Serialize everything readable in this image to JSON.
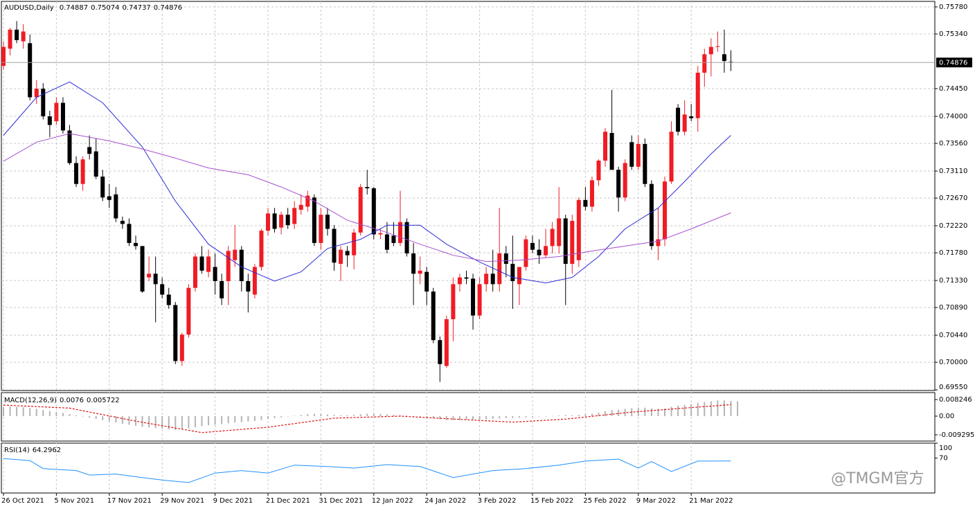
{
  "chart_data": [
    {
      "type": "candlestick",
      "title": "AUDUSD,Daily",
      "categories": [
        "26 Oct 2021",
        null,
        null,
        null,
        null,
        null,
        null,
        null,
        "5 Nov 2021",
        null,
        null,
        null,
        null,
        null,
        null,
        null,
        "17 Nov 2021",
        null,
        null,
        null,
        null,
        null,
        null,
        null,
        "29 Nov 2021",
        null,
        null,
        null,
        null,
        null,
        null,
        null,
        "9 Dec 2021",
        null,
        null,
        null,
        null,
        null,
        null,
        null,
        "21 Dec 2021",
        null,
        null,
        null,
        null,
        null,
        null,
        null,
        "31 Dec 2021",
        null,
        null,
        null,
        null,
        null,
        null,
        null,
        "12 Jan 2022",
        null,
        null,
        null,
        null,
        null,
        null,
        null,
        "24 Jan 2022",
        null,
        null,
        null,
        null,
        null,
        null,
        null,
        "3 Feb 2022",
        null,
        null,
        null,
        null,
        null,
        null,
        null,
        "15 Feb 2022",
        null,
        null,
        null,
        null,
        null,
        null,
        null,
        "25 Feb 2022",
        null,
        null,
        null,
        null,
        null,
        null,
        null,
        "9 Mar 2022",
        null,
        null,
        null,
        null,
        null,
        null,
        null,
        "21 Mar 2022",
        null,
        null,
        null,
        null,
        null,
        null
      ],
      "open": [
        0.7482,
        0.751,
        0.7541,
        0.7522,
        0.7519,
        0.7431,
        0.7445,
        0.74,
        0.7392,
        0.7422,
        0.7377,
        0.7324,
        0.729,
        0.735,
        0.7343,
        0.7302,
        0.727,
        0.7273,
        0.723,
        0.7225,
        0.7194,
        0.7189,
        0.7138,
        0.7144,
        0.7127,
        0.711,
        0.7093,
        0.7002,
        0.7045,
        0.7121,
        0.7172,
        0.7147,
        0.7155,
        0.7132,
        0.7132,
        0.7166,
        0.7183,
        0.7132,
        0.711,
        0.7155,
        0.7214,
        0.7242,
        0.7219,
        0.724,
        0.7225,
        0.7248,
        0.7253,
        0.7268,
        0.7194,
        0.724,
        0.7217,
        0.716,
        0.7181,
        0.7174,
        0.7211,
        0.7285,
        0.7283,
        0.7208,
        0.7208,
        0.7206,
        0.7194,
        0.7228,
        0.7177,
        0.7144,
        0.7147,
        0.7115,
        0.7036,
        0.6994,
        0.707,
        0.7127,
        0.7138,
        0.7136,
        0.7076,
        0.7127,
        0.7144,
        0.7127,
        0.7177,
        0.716,
        0.7127,
        0.7155,
        0.7194,
        0.7183,
        0.7174,
        0.7189,
        0.7189,
        0.7234,
        0.716,
        0.7166,
        0.7264,
        0.7253,
        0.7296,
        0.7328,
        0.7373,
        0.7313,
        0.7268,
        0.7358,
        0.7318,
        0.7355,
        0.729,
        0.7189,
        0.72,
        0.7294,
        0.7414,
        0.7375,
        0.74,
        0.7397,
        0.7471,
        0.7501,
        0.7513,
        0.7501,
        0.74887
      ],
      "high": [
        0.7522,
        0.7544,
        0.7555,
        0.755,
        0.7533,
        0.7459,
        0.7454,
        0.7409,
        0.7431,
        0.7431,
        0.7386,
        0.7335,
        0.7335,
        0.7369,
        0.7364,
        0.7313,
        0.729,
        0.7285,
        0.7237,
        0.7234,
        0.7206,
        0.7189,
        0.7172,
        0.7172,
        0.7138,
        0.7121,
        0.7098,
        0.7048,
        0.7127,
        0.7177,
        0.7189,
        0.7183,
        0.7177,
        0.7144,
        0.7189,
        0.7223,
        0.7189,
        0.7144,
        0.716,
        0.7217,
        0.7251,
        0.7251,
        0.7245,
        0.7251,
        0.7262,
        0.7273,
        0.7279,
        0.7273,
        0.7251,
        0.7251,
        0.7223,
        0.7189,
        0.7189,
        0.7217,
        0.729,
        0.7313,
        0.7285,
        0.7217,
        0.7228,
        0.7228,
        0.7279,
        0.7234,
        0.7194,
        0.7172,
        0.7155,
        0.7121,
        0.7042,
        0.7076,
        0.7138,
        0.7144,
        0.7149,
        0.7144,
        0.7138,
        0.7155,
        0.7183,
        0.7251,
        0.7189,
        0.7206,
        0.7155,
        0.7206,
        0.7206,
        0.72,
        0.7217,
        0.7228,
        0.7285,
        0.724,
        0.724,
        0.7268,
        0.7285,
        0.7302,
        0.733,
        0.7381,
        0.7443,
        0.7318,
        0.733,
        0.7369,
        0.7369,
        0.7364,
        0.7296,
        0.7251,
        0.7302,
        0.7392,
        0.742,
        0.7426,
        0.742,
        0.7482,
        0.751,
        0.7527,
        0.7538,
        0.7541,
        0.75074
      ],
      "low": [
        0.7476,
        0.7499,
        0.7519,
        0.751,
        0.7426,
        0.742,
        0.7395,
        0.7366,
        0.7386,
        0.7372,
        0.7321,
        0.7285,
        0.7279,
        0.733,
        0.7298,
        0.7262,
        0.7251,
        0.7228,
        0.7217,
        0.7189,
        0.7183,
        0.7113,
        0.7132,
        0.7065,
        0.7104,
        0.7087,
        0.6997,
        0.6994,
        0.704,
        0.7115,
        0.7144,
        0.7138,
        0.711,
        0.7093,
        0.7093,
        0.7155,
        0.7115,
        0.7081,
        0.7104,
        0.7149,
        0.7206,
        0.7211,
        0.7208,
        0.7217,
        0.7217,
        0.724,
        0.7245,
        0.7189,
        0.7183,
        0.7206,
        0.7149,
        0.7132,
        0.7155,
        0.7151,
        0.7206,
        0.7273,
        0.72,
        0.72,
        0.7177,
        0.7189,
        0.7189,
        0.7172,
        0.7093,
        0.7127,
        0.7093,
        0.7031,
        0.6968,
        0.6991,
        0.7034,
        0.7115,
        0.7127,
        0.7053,
        0.707,
        0.7115,
        0.7115,
        0.7115,
        0.7138,
        0.7087,
        0.7093,
        0.7149,
        0.7177,
        0.716,
        0.717,
        0.7177,
        0.7177,
        0.7093,
        0.7144,
        0.7155,
        0.7247,
        0.7245,
        0.7287,
        0.7318,
        0.7313,
        0.7245,
        0.7262,
        0.7313,
        0.7313,
        0.7285,
        0.7183,
        0.7166,
        0.7189,
        0.729,
        0.7369,
        0.7369,
        0.7392,
        0.7375,
        0.7448,
        0.7465,
        0.7505,
        0.7471,
        0.74737
      ],
      "close": [
        0.7513,
        0.7541,
        0.7524,
        0.7538,
        0.7431,
        0.7445,
        0.74,
        0.7386,
        0.7422,
        0.7377,
        0.7324,
        0.729,
        0.733,
        0.7339,
        0.7302,
        0.7268,
        0.7264,
        0.7234,
        0.7225,
        0.7194,
        0.7189,
        0.7115,
        0.7144,
        0.7127,
        0.711,
        0.7093,
        0.7002,
        0.7045,
        0.7121,
        0.7172,
        0.7149,
        0.7172,
        0.7132,
        0.7104,
        0.7181,
        0.7183,
        0.7132,
        0.7115,
        0.7155,
        0.7214,
        0.7242,
        0.7217,
        0.724,
        0.7223,
        0.7251,
        0.7256,
        0.7271,
        0.7194,
        0.724,
        0.7217,
        0.7162,
        0.7183,
        0.7174,
        0.7211,
        0.7285,
        0.7283,
        0.7208,
        0.721,
        0.7183,
        0.7194,
        0.7228,
        0.7177,
        0.7144,
        0.7149,
        0.7115,
        0.7036,
        0.6997,
        0.707,
        0.7127,
        0.7138,
        0.7136,
        0.7076,
        0.7127,
        0.7144,
        0.7127,
        0.7177,
        0.716,
        0.7132,
        0.7155,
        0.72,
        0.7183,
        0.7174,
        0.7189,
        0.7217,
        0.7234,
        0.716,
        0.723,
        0.7264,
        0.7253,
        0.7296,
        0.7328,
        0.7375,
        0.7313,
        0.7268,
        0.7324,
        0.7318,
        0.7355,
        0.729,
        0.7189,
        0.72,
        0.7294,
        0.7375,
        0.7375,
        0.7403,
        0.7397,
        0.7471,
        0.7501,
        0.7513,
        0.7514,
        0.749,
        0.74876
      ],
      "up_color": "#ef1c24",
      "down_color": "#000000",
      "lines": [
        {
          "color": "#2b2bd6",
          "x": [
            0,
            5,
            10,
            15,
            21,
            26,
            31,
            36,
            41,
            45,
            49,
            54,
            58,
            63,
            67,
            72,
            77,
            82,
            86,
            90,
            94,
            99,
            103,
            107,
            110
          ],
          "values": [
            0.7369,
            0.7431,
            0.7456,
            0.7422,
            0.735,
            0.7262,
            0.7192,
            0.7155,
            0.7132,
            0.7147,
            0.7185,
            0.72,
            0.7223,
            0.7223,
            0.7192,
            0.7163,
            0.7138,
            0.7129,
            0.7138,
            0.7172,
            0.7217,
            0.7251,
            0.7294,
            0.7339,
            0.7369
          ]
        },
        {
          "color": "#a64fd0",
          "x": [
            0,
            5,
            10,
            16,
            21,
            26,
            31,
            37,
            42,
            47,
            52,
            58,
            63,
            68,
            73,
            78,
            84,
            89,
            94,
            99,
            104,
            110
          ],
          "values": [
            0.7327,
            0.7358,
            0.7372,
            0.736,
            0.7347,
            0.7332,
            0.7316,
            0.7305,
            0.7285,
            0.7262,
            0.7231,
            0.7211,
            0.7192,
            0.7174,
            0.7164,
            0.7166,
            0.7172,
            0.7181,
            0.7189,
            0.7197,
            0.7217,
            0.7243
          ]
        }
      ],
      "ylim": [
        0.6954,
        0.7587
      ],
      "yticks": [
        {
          "value": 0.7578,
          "label": "0.75780"
        },
        {
          "value": 0.7534,
          "label": "0.75340"
        },
        {
          "value": 0.7445,
          "label": "0.74450"
        },
        {
          "value": 0.74,
          "label": "0.74000"
        },
        {
          "value": 0.7356,
          "label": "0.73560"
        },
        {
          "value": 0.7311,
          "label": "0.73110"
        },
        {
          "value": 0.7267,
          "label": "0.72670"
        },
        {
          "value": 0.7222,
          "label": "0.72220"
        },
        {
          "value": 0.7178,
          "label": "0.71780"
        },
        {
          "value": 0.7133,
          "label": "0.71330"
        },
        {
          "value": 0.7089,
          "label": "0.70890"
        },
        {
          "value": 0.7044,
          "label": "0.70440"
        },
        {
          "value": 0.7,
          "label": "0.70000"
        },
        {
          "value": 0.6955,
          "label": "0.69550"
        }
      ],
      "grid": true
    },
    {
      "type": "macd",
      "title": "MACD(12,26,9)",
      "values": [
        0.0045,
        0.0048,
        0.0046,
        0.0044,
        0.004,
        0.0036,
        0.003,
        0.0025,
        0.0021,
        0.0016,
        0.001,
        0.0004,
        -0.0002,
        -0.0008,
        -0.0014,
        -0.002,
        -0.0026,
        -0.0032,
        -0.0038,
        -0.0043,
        -0.0048,
        -0.0053,
        -0.0056,
        -0.0059,
        -0.0062,
        -0.0065,
        -0.0068,
        -0.0066,
        -0.0061,
        -0.0055,
        -0.005,
        -0.0046,
        -0.0043,
        -0.004,
        -0.0036,
        -0.0032,
        -0.003,
        -0.0027,
        -0.0024,
        -0.002,
        -0.0015,
        -0.001,
        -0.0006,
        -0.0002,
        0.0002,
        0.0006,
        0.001,
        0.0012,
        0.001,
        0.0008,
        0.0006,
        0.0004,
        0.0004,
        0.0006,
        0.001,
        0.0012,
        0.0012,
        0.001,
        0.0008,
        0.0006,
        0.0004,
        0.0002,
        -0.0001,
        -0.0003,
        -0.0006,
        -0.001,
        -0.0016,
        -0.002,
        -0.002,
        -0.0019,
        -0.0018,
        -0.0019,
        -0.0018,
        -0.0016,
        -0.0014,
        -0.0012,
        -0.001,
        -0.001,
        -0.0008,
        -0.0006,
        -0.0004,
        -0.0002,
        0,
        0.0001,
        0.0003,
        0.0005,
        0.0004,
        0.0006,
        0.0009,
        0.0012,
        0.0017,
        0.0024,
        0.003,
        0.0032,
        0.0036,
        0.004,
        0.0042,
        0.0042,
        0.0038,
        0.0036,
        0.0038,
        0.0046,
        0.0052,
        0.0056,
        0.006,
        0.0066,
        0.007,
        0.0074,
        0.0078,
        0.0078,
        0.0076,
        0.007433
      ],
      "color": "#b4b4b4",
      "signal": {
        "color": "#e01010",
        "x": [
          0,
          10,
          20,
          30,
          40,
          50,
          60,
          70,
          77,
          85,
          95,
          105,
          110
        ],
        "values": [
          0.0055,
          0.004,
          -0.0025,
          -0.0082,
          -0.0055,
          -0.001,
          0.0,
          -0.0018,
          -0.003,
          -0.0015,
          0.002,
          0.0045,
          0.005722
        ]
      },
      "ylim": [
        -0.0124,
        0.0117
      ],
      "yticks": [
        0.008246,
        {
          "value": 0,
          "label": "0.00"
        },
        -0.009295
      ]
    },
    {
      "type": "line",
      "title": "RSI(14)",
      "x": [
        0,
        4,
        6,
        11,
        13,
        17,
        21,
        24,
        28,
        32,
        36,
        40,
        44,
        49,
        53,
        58,
        63,
        68,
        74,
        79,
        84,
        88,
        93,
        96,
        98,
        101,
        105,
        110
      ],
      "values": [
        69,
        65,
        49,
        45,
        36,
        38,
        31,
        26,
        21,
        40,
        45,
        40,
        56,
        53,
        50,
        57,
        53,
        31,
        45,
        49,
        56,
        64,
        68,
        50,
        63,
        43,
        64,
        64.2962
      ],
      "color": "#1e90ff",
      "ylim": [
        0,
        100
      ],
      "yticks": [
        100,
        70
      ]
    }
  ],
  "watermark": "@TMGM官方"
}
